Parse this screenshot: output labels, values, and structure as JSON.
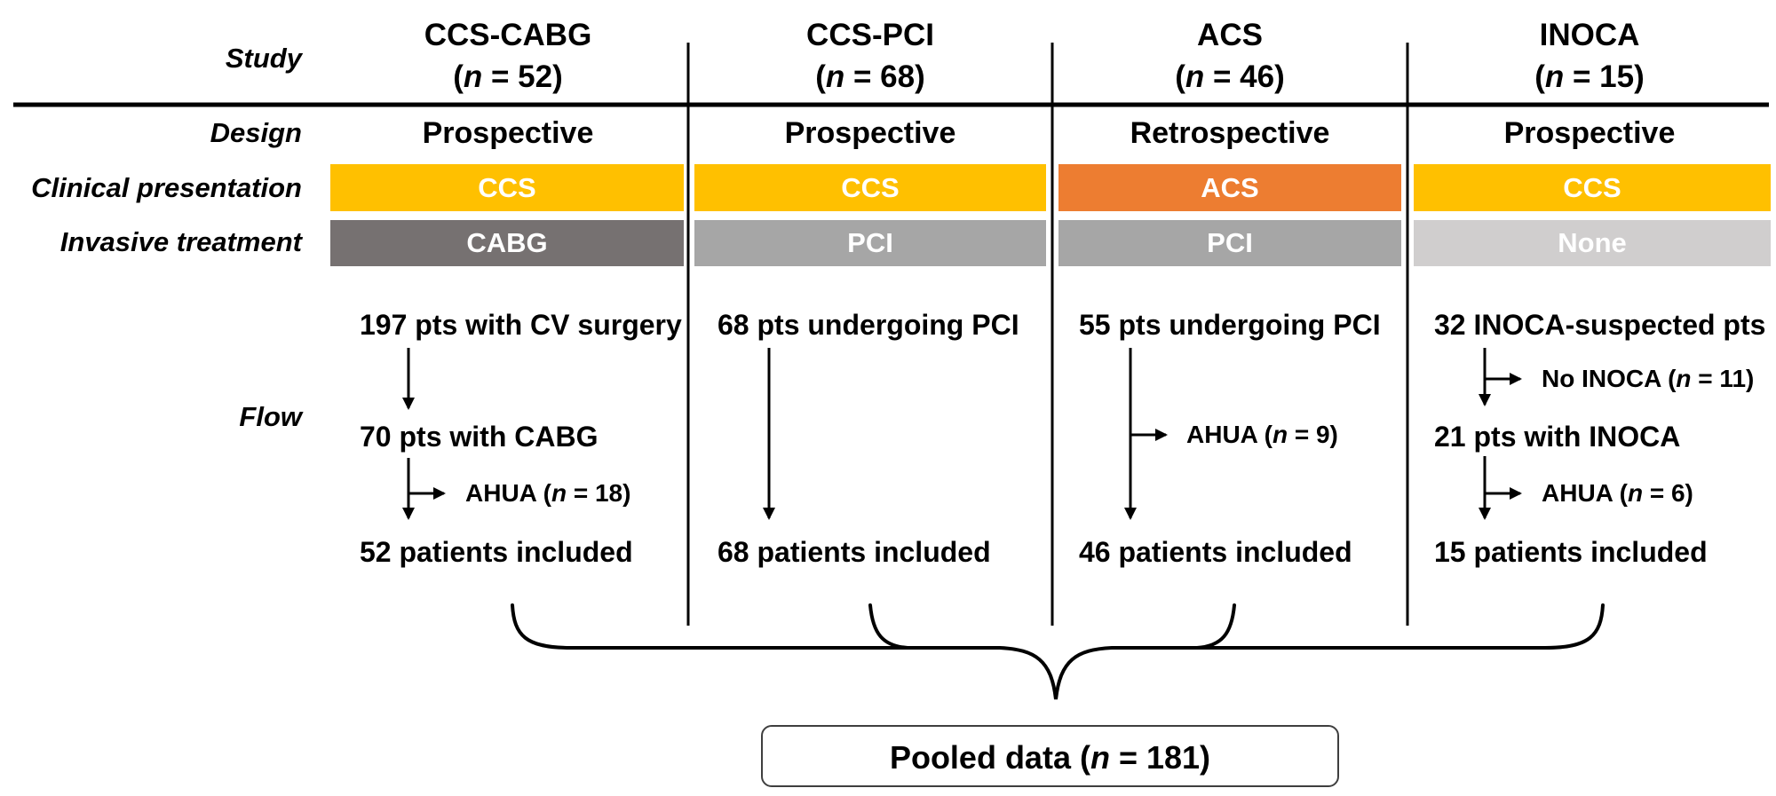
{
  "diagram": {
    "row_labels": {
      "study": "Study",
      "design": "Design",
      "clinical_presentation": "Clinical presentation",
      "invasive_treatment": "Invasive treatment",
      "flow": "Flow"
    },
    "columns": [
      {
        "study": "CCS-CABG",
        "n": "(n = 52)",
        "design": "Prospective",
        "clinical_presentation": "CCS",
        "clinical_color": "#FFC000",
        "invasive_treatment": "CABG",
        "invasive_color": "#767171",
        "flow_top": "197 pts with CV surgery",
        "flow_mid": "70 pts with CABG",
        "flow_exclusion": "AHUA (n = 18)",
        "flow_bottom": "52 patients included"
      },
      {
        "study": "CCS-PCI",
        "n": "(n = 68)",
        "design": "Prospective",
        "clinical_presentation": "CCS",
        "clinical_color": "#FFC000",
        "invasive_treatment": "PCI",
        "invasive_color": "#A6A6A6",
        "flow_top": "68 pts undergoing PCI",
        "flow_bottom": "68 patients included"
      },
      {
        "study": "ACS",
        "n": "(n = 46)",
        "design": "Retrospective",
        "clinical_presentation": "ACS",
        "clinical_color": "#ED7D31",
        "invasive_treatment": "PCI",
        "invasive_color": "#A6A6A6",
        "flow_top": "55 pts undergoing PCI",
        "flow_exclusion": "AHUA (n = 9)",
        "flow_bottom": "46 patients included"
      },
      {
        "study": "INOCA",
        "n": "(n = 15)",
        "design": "Prospective",
        "clinical_presentation": "CCS",
        "clinical_color": "#FFC000",
        "invasive_treatment": "None",
        "invasive_color": "#D0CECE",
        "flow_top": "32 INOCA-suspected pts",
        "flow_exclusion_1": "No INOCA (n = 11)",
        "flow_mid": "21 pts with INOCA",
        "flow_exclusion_2": "AHUA (n = 6)",
        "flow_bottom": "15 patients included"
      }
    ],
    "pooled_label": "Pooled data (n = 181)",
    "colors": {
      "ccs": "#FFC000",
      "acs": "#ED7D31",
      "cabg": "#767171",
      "pci": "#A6A6A6",
      "none": "#D0CECE",
      "line": "#000000"
    }
  }
}
